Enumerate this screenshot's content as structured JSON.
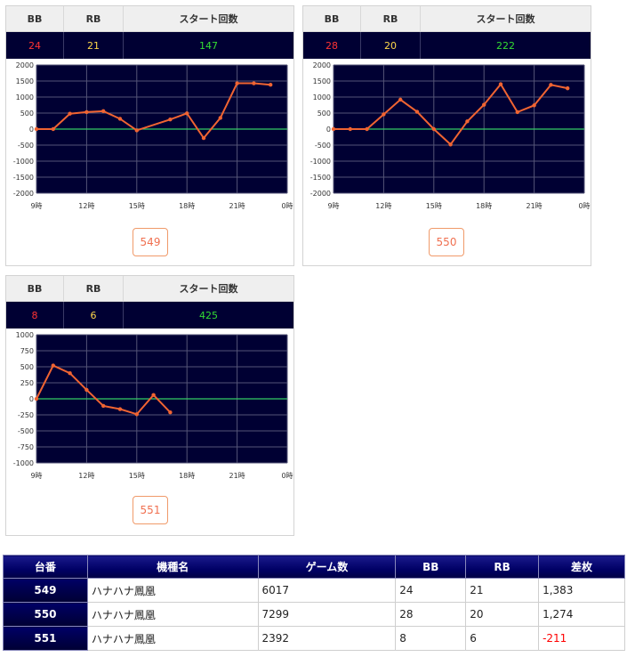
{
  "cards": [
    {
      "headers": {
        "bb": "BB",
        "rb": "RB",
        "start": "スタート回数"
      },
      "bb": "24",
      "rb": "21",
      "start": "147",
      "machine": "549",
      "chart_data": {
        "type": "line",
        "x_ticks": [
          "9時",
          "12時",
          "15時",
          "18時",
          "21時",
          "0時"
        ],
        "y_ticks": [
          "2000",
          "1500",
          "1000",
          "500",
          "0",
          "-500",
          "-1000",
          "-1500",
          "-2000"
        ],
        "ylim": [
          -2000,
          2000
        ],
        "xlim": [
          9,
          24
        ],
        "x": [
          9,
          10,
          11,
          12,
          13,
          14,
          15,
          17,
          18,
          19,
          20,
          21,
          22,
          23
        ],
        "values": [
          0,
          0,
          480,
          530,
          560,
          320,
          -40,
          300,
          490,
          -280,
          350,
          1430,
          1430,
          1383
        ],
        "line_color": "#f06432",
        "zero_color": "#33cc66"
      }
    },
    {
      "headers": {
        "bb": "BB",
        "rb": "RB",
        "start": "スタート回数"
      },
      "bb": "28",
      "rb": "20",
      "start": "222",
      "machine": "550",
      "chart_data": {
        "type": "line",
        "x_ticks": [
          "9時",
          "12時",
          "15時",
          "18時",
          "21時",
          "0時"
        ],
        "y_ticks": [
          "2000",
          "1500",
          "1000",
          "500",
          "0",
          "-500",
          "-1000",
          "-1500",
          "-2000"
        ],
        "ylim": [
          -2000,
          2000
        ],
        "xlim": [
          9,
          24
        ],
        "x": [
          9,
          10,
          11,
          12,
          13,
          14,
          15,
          16,
          17,
          18,
          19,
          20,
          21,
          22,
          23
        ],
        "values": [
          0,
          0,
          0,
          460,
          920,
          540,
          0,
          -480,
          240,
          760,
          1400,
          530,
          740,
          1380,
          1274
        ],
        "line_color": "#f06432",
        "zero_color": "#33cc66"
      }
    },
    {
      "headers": {
        "bb": "BB",
        "rb": "RB",
        "start": "スタート回数"
      },
      "bb": "8",
      "rb": "6",
      "start": "425",
      "machine": "551",
      "chart_data": {
        "type": "line",
        "x_ticks": [
          "9時",
          "12時",
          "15時",
          "18時",
          "21時",
          "0時"
        ],
        "y_ticks": [
          "1000",
          "750",
          "500",
          "250",
          "0",
          "-250",
          "-500",
          "-750",
          "-1000"
        ],
        "ylim": [
          -1000,
          1000
        ],
        "xlim": [
          9,
          24
        ],
        "x": [
          9,
          10,
          11,
          12,
          13,
          14,
          15,
          16,
          17
        ],
        "values": [
          0,
          520,
          400,
          140,
          -110,
          -160,
          -240,
          60,
          -211
        ],
        "line_color": "#f06432",
        "zero_color": "#33cc66"
      }
    }
  ],
  "summary": {
    "headers": [
      "台番",
      "機種名",
      "ゲーム数",
      "BB",
      "RB",
      "差枚"
    ],
    "rows": [
      {
        "num": "549",
        "name": "ハナハナ鳳凰",
        "games": "6017",
        "bb": "24",
        "rb": "21",
        "diff": "1,383"
      },
      {
        "num": "550",
        "name": "ハナハナ鳳凰",
        "games": "7299",
        "bb": "28",
        "rb": "20",
        "diff": "1,274"
      },
      {
        "num": "551",
        "name": "ハナハナ鳳凰",
        "games": "2392",
        "bb": "8",
        "rb": "6",
        "diff": "-211"
      }
    ]
  },
  "colors": {
    "panel_bg": "#000033",
    "bb_value": "#ff3333",
    "rb_value": "#ffd84a",
    "start_value": "#33dd33",
    "negative_diff": "#ff0000"
  }
}
